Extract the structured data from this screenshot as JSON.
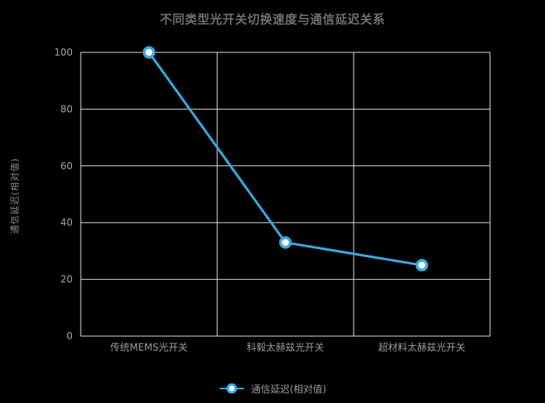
{
  "title": "不同类型光开关切换速度与通信延迟关系",
  "colors": {
    "background": "#000000",
    "line": "#3aa9e0",
    "marker_fill": "#ffffff",
    "grid": "#dcdcdc",
    "title_text": "#6f6f6f",
    "tick_text": "#a3a3a3",
    "label_text": "#9a9a9a"
  },
  "chart_data": {
    "type": "line",
    "title": "不同类型光开关切换速度与通信延迟关系",
    "categories": [
      "传统MEMS光开关",
      "科毅太赫兹光开关",
      "超材料太赫兹光开关"
    ],
    "series": [
      {
        "name": "通信延迟(相对值)",
        "values": [
          100,
          33,
          25
        ]
      }
    ],
    "xlabel": "",
    "ylabel": "通信延迟(相对值)",
    "ylim": [
      0,
      100
    ],
    "yticks": [
      0,
      20,
      40,
      60,
      80,
      100
    ],
    "grid": true,
    "legend_position": "bottom",
    "marker": "open-circle"
  },
  "legend": {
    "items": [
      {
        "label": "通信延迟(相对值)"
      }
    ]
  }
}
